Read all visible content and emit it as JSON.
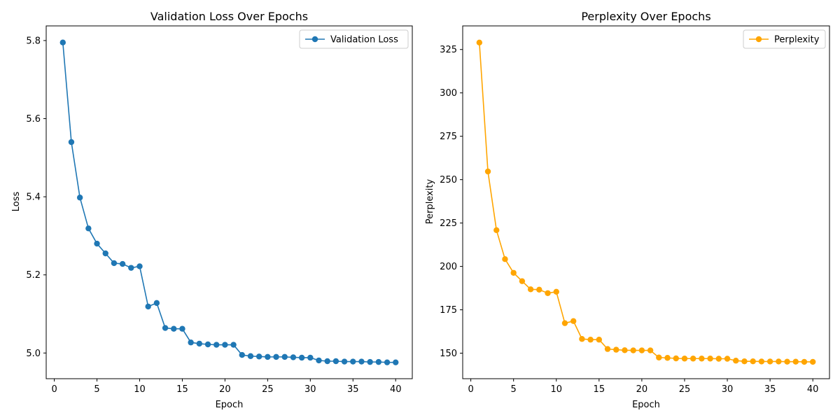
{
  "chart_data": [
    {
      "type": "line",
      "title": "Validation Loss Over Epochs",
      "xlabel": "Epoch",
      "ylabel": "Loss",
      "xlim": [
        -0.95,
        41.95
      ],
      "ylim": [
        4.9342,
        5.8375
      ],
      "xticks": [
        0,
        5,
        10,
        15,
        20,
        25,
        30,
        35,
        40
      ],
      "yticks": [
        5.0,
        5.2,
        5.4,
        5.6,
        5.8
      ],
      "ytick_format": 1,
      "grid": false,
      "legend": "upper right",
      "color": "#1f77b4",
      "marker": "circle",
      "series": [
        {
          "name": "Validation Loss",
          "x": [
            1,
            2,
            3,
            4,
            5,
            6,
            7,
            8,
            9,
            10,
            11,
            12,
            13,
            14,
            15,
            16,
            17,
            18,
            19,
            20,
            21,
            22,
            23,
            24,
            25,
            26,
            27,
            28,
            29,
            30,
            31,
            32,
            33,
            34,
            35,
            36,
            37,
            38,
            39,
            40
          ],
          "y": [
            5.795,
            5.54,
            5.398,
            5.319,
            5.28,
            5.255,
            5.23,
            5.228,
            5.218,
            5.222,
            5.119,
            5.128,
            5.064,
            5.062,
            5.062,
            5.027,
            5.024,
            5.022,
            5.021,
            5.021,
            5.021,
            4.995,
            4.992,
            4.991,
            4.99,
            4.99,
            4.99,
            4.989,
            4.988,
            4.988,
            4.981,
            4.979,
            4.979,
            4.978,
            4.978,
            4.978,
            4.977,
            4.977,
            4.976,
            4.976
          ]
        }
      ]
    },
    {
      "type": "line",
      "title": "Perplexity Over Epochs",
      "xlabel": "Epoch",
      "ylabel": "Perplexity",
      "xlim": [
        -0.95,
        41.95
      ],
      "ylim": [
        135.3,
        338.6
      ],
      "xticks": [
        0,
        5,
        10,
        15,
        20,
        25,
        30,
        35,
        40
      ],
      "yticks": [
        150,
        175,
        200,
        225,
        250,
        275,
        300,
        325
      ],
      "ytick_format": 0,
      "grid": false,
      "legend": "upper right",
      "color": "#ffa500",
      "marker": "circle",
      "series": [
        {
          "name": "Perplexity",
          "x": [
            1,
            2,
            3,
            4,
            5,
            6,
            7,
            8,
            9,
            10,
            11,
            12,
            13,
            14,
            15,
            16,
            17,
            18,
            19,
            20,
            21,
            22,
            23,
            24,
            25,
            26,
            27,
            28,
            29,
            30,
            31,
            32,
            33,
            34,
            35,
            36,
            37,
            38,
            39,
            40
          ],
          "y": [
            329.0,
            254.7,
            220.9,
            204.2,
            196.3,
            191.5,
            186.8,
            186.6,
            184.6,
            185.4,
            167.3,
            168.5,
            158.2,
            157.8,
            157.8,
            152.4,
            152.0,
            151.7,
            151.6,
            151.6,
            151.6,
            147.5,
            147.3,
            147.0,
            146.9,
            146.9,
            146.9,
            146.9,
            146.8,
            146.8,
            145.7,
            145.3,
            145.3,
            145.2,
            145.2,
            145.2,
            145.1,
            145.1,
            145.0,
            145.0
          ]
        }
      ]
    }
  ]
}
